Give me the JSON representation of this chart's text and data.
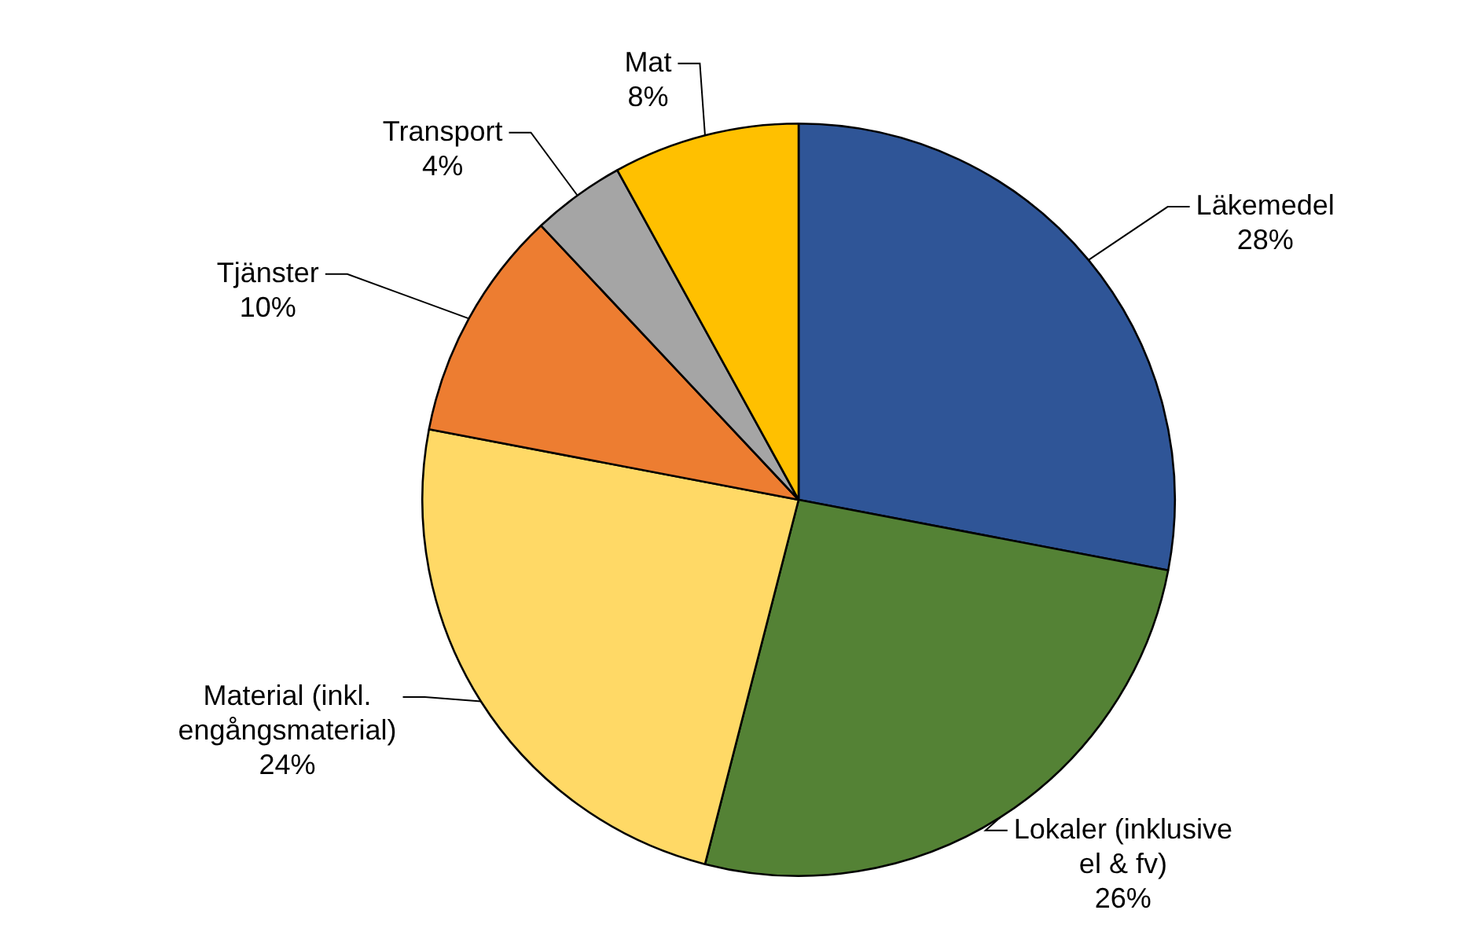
{
  "chart_data": {
    "type": "pie",
    "categories": [
      "Läkemedel",
      "Lokaler (inklusive el & fv)",
      "Material (inkl. engångsmaterial)",
      "Tjänster",
      "Transport",
      "Mat"
    ],
    "values": [
      28,
      26,
      24,
      10,
      4,
      8
    ],
    "value_labels": [
      "28%",
      "26%",
      "24%",
      "10%",
      "4%",
      "8%"
    ],
    "colors": [
      "#2f5597",
      "#548235",
      "#ffd966",
      "#ed7d31",
      "#a5a5a5",
      "#ffc000"
    ],
    "legend": false
  }
}
